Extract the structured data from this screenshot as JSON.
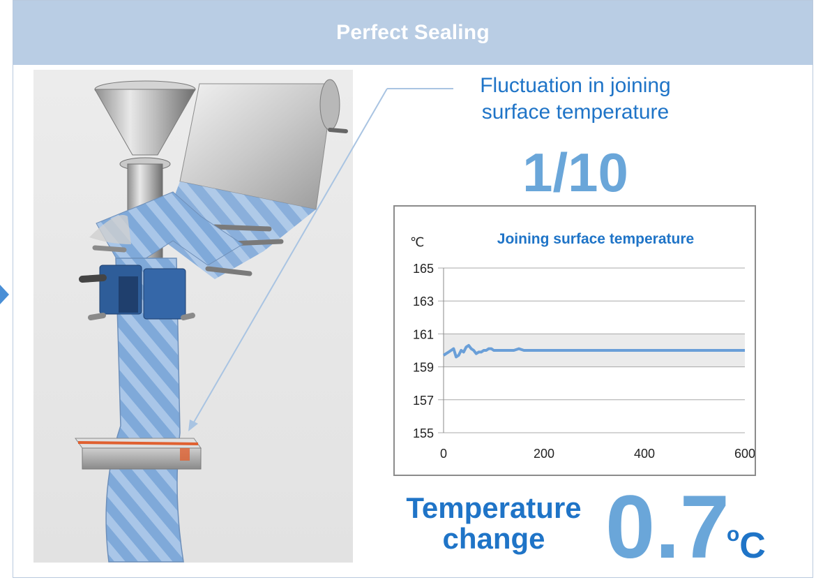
{
  "banner": {
    "title": "Perfect Sealing"
  },
  "callout": {
    "line1": "Fluctuation in joining",
    "line2": "surface temperature",
    "ratio": "1/10"
  },
  "chart_data": {
    "type": "line",
    "title": "Joining surface temperature",
    "ylabel": "℃",
    "xlabel": "",
    "xlim": [
      0,
      600
    ],
    "ylim": [
      155,
      165
    ],
    "x_ticks": [
      0,
      200,
      400,
      600
    ],
    "y_ticks": [
      155,
      157,
      159,
      161,
      163,
      165
    ],
    "band": [
      159,
      161
    ],
    "grid": true,
    "series": [
      {
        "name": "",
        "color": "#6a9fd8",
        "x": [
          0,
          5,
          10,
          15,
          20,
          25,
          30,
          35,
          40,
          45,
          50,
          55,
          60,
          65,
          70,
          75,
          80,
          85,
          90,
          95,
          100,
          110,
          120,
          130,
          140,
          150,
          160,
          170,
          180,
          190,
          200,
          300,
          400,
          500,
          600
        ],
        "y": [
          159.7,
          159.8,
          159.9,
          160.0,
          160.1,
          159.6,
          159.7,
          160.0,
          159.9,
          160.2,
          160.3,
          160.1,
          160.0,
          159.8,
          159.9,
          159.9,
          160.0,
          160.0,
          160.1,
          160.1,
          160.0,
          160.0,
          160.0,
          160.0,
          160.0,
          160.1,
          160.0,
          160.0,
          160.0,
          160.0,
          160.0,
          160.0,
          160.0,
          160.0,
          160.0
        ]
      }
    ]
  },
  "summary": {
    "label_line1": "Temperature",
    "label_line2": "change",
    "value": "0.7",
    "degree": "o",
    "unit": "C"
  },
  "colors": {
    "banner": "#b9cde4",
    "accent": "#1f74c7",
    "light_accent": "#6aa6d9"
  }
}
